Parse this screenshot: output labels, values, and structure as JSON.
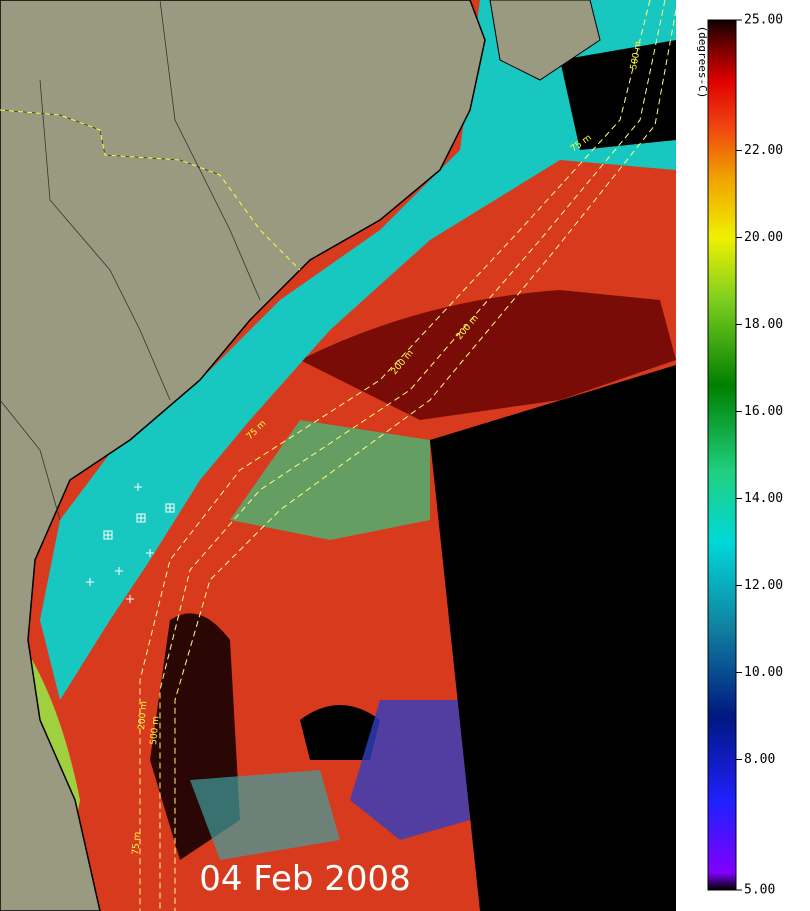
{
  "map": {
    "date": "04 Feb 2008",
    "isobath_labels": [
      "75 m",
      "200 m",
      "500 m",
      "75 m",
      "200 m",
      "500 m",
      "200 m",
      "75 m"
    ]
  },
  "colorbar": {
    "units": "(degrees-C)",
    "min": 5,
    "max": 25,
    "ticks": [
      {
        "value": 25,
        "label": "25.00"
      },
      {
        "value": 22,
        "label": "22.00"
      },
      {
        "value": 20,
        "label": "20.00"
      },
      {
        "value": 18,
        "label": "18.00"
      },
      {
        "value": 16,
        "label": "16.00"
      },
      {
        "value": 14,
        "label": "14.00"
      },
      {
        "value": 12,
        "label": "12.00"
      },
      {
        "value": 10,
        "label": "10.00"
      },
      {
        "value": 8,
        "label": "8.00"
      },
      {
        "value": 5,
        "label": "5.00"
      }
    ]
  }
}
